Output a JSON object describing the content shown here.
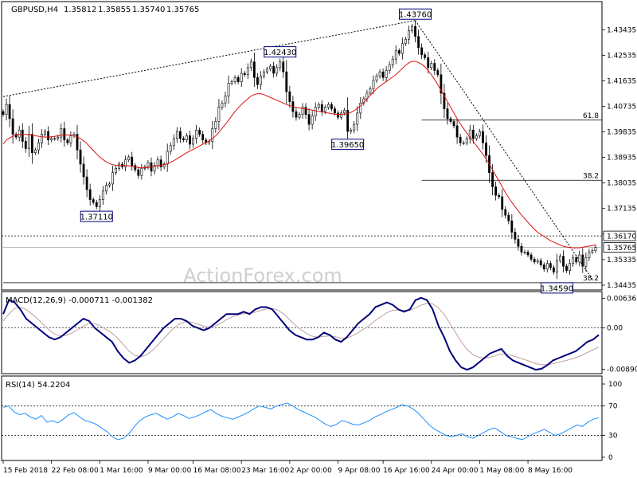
{
  "chart_data": {
    "type": "candlestick",
    "header": {
      "symbol": "GBPUSD,H4",
      "open": "1.35812",
      "high": "1.35855",
      "low": "1.35740",
      "close": "1.35765"
    },
    "watermark": "ActionForex.com",
    "price_axis": {
      "ylim": [
        1.3432,
        1.4437
      ],
      "ticks": [
        "1.43435",
        "1.42535",
        "1.41635",
        "1.40735",
        "1.39835",
        "1.38935",
        "1.38035",
        "1.37135",
        "1.36235",
        "1.35335",
        "1.34435"
      ],
      "current_price": "1.35765",
      "current_price_value": 1.35765,
      "level_line": "1.36170",
      "level_line_value": 1.3617
    },
    "annotations": [
      {
        "label": "1.43760",
        "x": 128,
        "y": 1.4376
      },
      {
        "label": "1.42430",
        "x": 86,
        "y": 1.4243
      },
      {
        "label": "1.39650",
        "x": 107,
        "y": 1.3965
      },
      {
        "label": "1.37110",
        "x": 29,
        "y": 1.3711
      },
      {
        "label": "1.34590",
        "x": 172,
        "y": 1.3459
      }
    ],
    "fibonacci": [
      {
        "label": "61.8",
        "y": 1.4025,
        "x_from": 130,
        "x_to": 186
      },
      {
        "label": "38.2",
        "y": 1.3813,
        "x_from": 130,
        "x_to": 186
      },
      {
        "label": "38.2",
        "y": 1.3452,
        "x_from": 0,
        "x_to": 186
      }
    ],
    "trendlines": [
      {
        "points": [
          [
            0,
            1.4108
          ],
          [
            128,
            1.4376
          ]
        ]
      },
      {
        "points": [
          [
            128,
            1.4376
          ],
          [
            183,
            1.3464
          ]
        ]
      }
    ],
    "close_series": [
      1.4045,
      1.408,
      1.403,
      1.3975,
      1.3965,
      1.399,
      1.395,
      1.3925,
      1.3975,
      1.391,
      1.392,
      1.3945,
      1.3975,
      1.3985,
      1.3955,
      1.396,
      1.396,
      1.3965,
      1.3995,
      1.3955,
      1.3945,
      1.397,
      1.3975,
      1.392,
      1.387,
      1.3825,
      1.378,
      1.3745,
      1.3735,
      1.372,
      1.3745,
      1.3775,
      1.3795,
      1.38,
      1.384,
      1.3855,
      1.387,
      1.386,
      1.3885,
      1.3895,
      1.3865,
      1.385,
      1.383,
      1.3855,
      1.386,
      1.3875,
      1.3845,
      1.3865,
      1.3885,
      1.386,
      1.387,
      1.3915,
      1.3935,
      1.396,
      1.3985,
      1.396,
      1.3955,
      1.397,
      1.394,
      1.396,
      1.399,
      1.3975,
      1.3955,
      1.3945,
      1.395,
      1.3995,
      1.402,
      1.407,
      1.4085,
      1.411,
      1.4155,
      1.416,
      1.4175,
      1.416,
      1.419,
      1.4185,
      1.421,
      1.423,
      1.4175,
      1.415,
      1.418,
      1.4195,
      1.4205,
      1.4215,
      1.419,
      1.421,
      1.423,
      1.4195,
      1.4125,
      1.409,
      1.4055,
      1.4035,
      1.4045,
      1.407,
      1.4045,
      1.401,
      1.404,
      1.407,
      1.408,
      1.4055,
      1.407,
      1.408,
      1.4065,
      1.405,
      1.4035,
      1.405,
      1.406,
      1.3985,
      1.399,
      1.401,
      1.405,
      1.4085,
      1.41,
      1.412,
      1.4135,
      1.4165,
      1.418,
      1.4195,
      1.4175,
      1.42,
      1.422,
      1.424,
      1.427,
      1.426,
      1.4295,
      1.431,
      1.434,
      1.4355,
      1.432,
      1.428,
      1.4255,
      1.4245,
      1.421,
      1.4225,
      1.42,
      1.4185,
      1.412,
      1.4065,
      1.403,
      1.402,
      1.4005,
      1.3965,
      1.3945,
      1.3945,
      1.396,
      1.399,
      1.396,
      1.397,
      1.3985,
      1.3945,
      1.39,
      1.384,
      1.379,
      1.376,
      1.3755,
      1.371,
      1.369,
      1.367,
      1.363,
      1.3605,
      1.358,
      1.356,
      1.356,
      1.355,
      1.3535,
      1.3525,
      1.353,
      1.3515,
      1.35,
      1.352,
      1.3505,
      1.349,
      1.353,
      1.3545,
      1.351,
      1.3495,
      1.352,
      1.354,
      1.3525,
      1.355,
      1.351,
      1.354,
      1.356,
      1.3565,
      1.35765
    ],
    "ma_series": [
      1.394,
      1.3955,
      1.3962,
      1.3968,
      1.3972,
      1.3974,
      1.3975,
      1.3975,
      1.3974,
      1.3972,
      1.397,
      1.3968,
      1.3966,
      1.3965,
      1.3965,
      1.3966,
      1.3968,
      1.397,
      1.3972,
      1.3973,
      1.3973,
      1.3972,
      1.397,
      1.3966,
      1.396,
      1.3952,
      1.3942,
      1.393,
      1.3918,
      1.3906,
      1.3895,
      1.3886,
      1.3878,
      1.3872,
      1.3868,
      1.3866,
      1.3865,
      1.3865,
      1.3865,
      1.3864,
      1.3862,
      1.386,
      1.3858,
      1.3857,
      1.3857,
      1.3858,
      1.386,
      1.3862,
      1.3864,
      1.3866,
      1.3868,
      1.3871,
      1.3876,
      1.3882,
      1.3889,
      1.3896,
      1.3903,
      1.391,
      1.3916,
      1.3922,
      1.3928,
      1.3934,
      1.394,
      1.3946,
      1.3952,
      1.396,
      1.397,
      1.3982,
      1.3996,
      1.401,
      1.4025,
      1.404,
      1.4055,
      1.4068,
      1.408,
      1.409,
      1.41,
      1.411,
      1.4115,
      1.4118,
      1.4118,
      1.4115,
      1.411,
      1.4105,
      1.41,
      1.4095,
      1.409,
      1.4085,
      1.408,
      1.4076,
      1.4073,
      1.407,
      1.4068,
      1.4066,
      1.4064,
      1.4062,
      1.406,
      1.4058,
      1.4056,
      1.4054,
      1.4052,
      1.405,
      1.4048,
      1.4046,
      1.4045,
      1.4045,
      1.4046,
      1.4048,
      1.4052,
      1.4058,
      1.4066,
      1.4076,
      1.4088,
      1.41,
      1.4112,
      1.4124,
      1.4135,
      1.4145,
      1.4153,
      1.4161,
      1.4169,
      1.4177,
      1.4186,
      1.4196,
      1.4207,
      1.4218,
      1.4227,
      1.4232,
      1.4232,
      1.4228,
      1.4222,
      1.4212,
      1.42,
      1.4185,
      1.4168,
      1.415,
      1.413,
      1.411,
      1.409,
      1.407,
      1.405,
      1.403,
      1.4012,
      1.3995,
      1.398,
      1.3965,
      1.395,
      1.3935,
      1.392,
      1.3905,
      1.3888,
      1.387,
      1.385,
      1.383,
      1.381,
      1.379,
      1.377,
      1.3752,
      1.3735,
      1.372,
      1.3705,
      1.369,
      1.3678,
      1.3665,
      1.3652,
      1.364,
      1.363,
      1.3622,
      1.3615,
      1.3608,
      1.36,
      1.3595,
      1.359,
      1.3585,
      1.358,
      1.3578,
      1.3576,
      1.3575,
      1.3575,
      1.3575,
      1.3577,
      1.3579,
      1.3581,
      1.3583,
      1.3586
    ],
    "macd": {
      "label": "MACD(12,26,9) -0.000711 -0.001382",
      "ylim": [
        -0.0095,
        0.0075
      ],
      "ticks": [
        "0.006368",
        "0.00",
        "-0.008903"
      ],
      "tick_values": [
        0.006368,
        0.0,
        -0.008903
      ],
      "main": [
        0.003,
        0.006,
        0.0055,
        0.004,
        0.002,
        0.001,
        0.0,
        -0.001,
        -0.002,
        -0.0025,
        -0.002,
        -0.001,
        0.0,
        0.001,
        0.002,
        0.0015,
        0.0,
        -0.001,
        -0.002,
        -0.003,
        -0.005,
        -0.0065,
        -0.0075,
        -0.007,
        -0.006,
        -0.0045,
        -0.003,
        -0.0015,
        0.0,
        0.001,
        0.002,
        0.002,
        0.0015,
        0.0005,
        0.0,
        -0.0005,
        0.0,
        0.001,
        0.002,
        0.003,
        0.003,
        0.003,
        0.0035,
        0.003,
        0.004,
        0.0045,
        0.0045,
        0.004,
        0.0025,
        0.001,
        -0.0005,
        -0.0015,
        -0.002,
        -0.0025,
        -0.0025,
        -0.002,
        -0.001,
        -0.0015,
        -0.0025,
        -0.003,
        -0.002,
        -0.0005,
        0.001,
        0.002,
        0.003,
        0.0045,
        0.005,
        0.0055,
        0.005,
        0.004,
        0.0035,
        0.004,
        0.006,
        0.0065,
        0.006,
        0.004,
        0.0005,
        -0.002,
        -0.005,
        -0.007,
        -0.0085,
        -0.009,
        -0.0085,
        -0.0075,
        -0.0065,
        -0.0055,
        -0.005,
        -0.0045,
        -0.006,
        -0.007,
        -0.0075,
        -0.008,
        -0.0085,
        -0.009,
        -0.0088,
        -0.008,
        -0.007,
        -0.0065,
        -0.006,
        -0.0055,
        -0.005,
        -0.004,
        -0.003,
        -0.0025,
        -0.0015
      ],
      "signal": [
        0.0015,
        0.003,
        0.0042,
        0.0045,
        0.004,
        0.003,
        0.002,
        0.0008,
        -0.0004,
        -0.0013,
        -0.0017,
        -0.0016,
        -0.0011,
        -0.0004,
        0.0004,
        0.001,
        0.0009,
        0.0004,
        -0.0003,
        -0.0011,
        -0.0022,
        -0.0036,
        -0.005,
        -0.0059,
        -0.0062,
        -0.0058,
        -0.0049,
        -0.0037,
        -0.0023,
        -0.001,
        0.0002,
        0.001,
        0.0014,
        0.0012,
        0.0008,
        0.0004,
        0.0002,
        0.0004,
        0.001,
        0.0018,
        0.0024,
        0.0028,
        0.0031,
        0.0032,
        0.0034,
        0.0038,
        0.0041,
        0.0042,
        0.0038,
        0.003,
        0.0018,
        0.0006,
        -0.0004,
        -0.0012,
        -0.0018,
        -0.002,
        -0.0018,
        -0.0017,
        -0.0019,
        -0.0022,
        -0.0022,
        -0.0017,
        -0.001,
        -0.0002,
        0.0006,
        0.0016,
        0.0025,
        0.0033,
        0.0038,
        0.0039,
        0.0038,
        0.0038,
        0.0043,
        0.0049,
        0.0053,
        0.0052,
        0.0043,
        0.0029,
        0.001,
        -0.001,
        -0.003,
        -0.0046,
        -0.0057,
        -0.0063,
        -0.0065,
        -0.0063,
        -0.006,
        -0.0056,
        -0.0057,
        -0.006,
        -0.0064,
        -0.0068,
        -0.0072,
        -0.0077,
        -0.0079,
        -0.0079,
        -0.0077,
        -0.0074,
        -0.0071,
        -0.0068,
        -0.0064,
        -0.0059,
        -0.0053,
        -0.0047,
        -0.0041
      ]
    },
    "rsi": {
      "label": "RSI(14) 54.2204",
      "ylim": [
        0,
        100
      ],
      "ticks": [
        "100",
        "70",
        "30",
        "0"
      ],
      "tick_values": [
        100,
        70,
        30,
        0
      ],
      "values": [
        68,
        70,
        62,
        58,
        60,
        55,
        52,
        57,
        48,
        50,
        47,
        52,
        58,
        61,
        55,
        50,
        48,
        45,
        40,
        35,
        28,
        24,
        26,
        32,
        42,
        50,
        55,
        58,
        60,
        56,
        52,
        55,
        60,
        57,
        53,
        55,
        58,
        62,
        65,
        60,
        56,
        54,
        52,
        55,
        58,
        62,
        67,
        70,
        68,
        66,
        70,
        72,
        74,
        70,
        65,
        62,
        58,
        55,
        50,
        45,
        42,
        45,
        50,
        48,
        45,
        44,
        47,
        50,
        55,
        58,
        62,
        65,
        68,
        72,
        70,
        66,
        60,
        52,
        44,
        38,
        34,
        30,
        28,
        30,
        32,
        28,
        26,
        30,
        34,
        38,
        40,
        35,
        30,
        28,
        26,
        24,
        28,
        32,
        35,
        38,
        34,
        30,
        32,
        36,
        40,
        44,
        42,
        48,
        52,
        54
      ]
    },
    "x_axis": {
      "count": 186,
      "tick_labels": [
        {
          "label": "15 Feb 2018",
          "x": 0
        },
        {
          "label": "22 Feb 08:00",
          "x": 15
        },
        {
          "label": "1 Mar 16:00",
          "x": 30
        },
        {
          "label": "9 Mar 00:00",
          "x": 45
        },
        {
          "label": "16 Mar 08:00",
          "x": 59
        },
        {
          "label": "23 Mar 16:00",
          "x": 74
        },
        {
          "label": "2 Apr 00:00",
          "x": 89
        },
        {
          "label": "9 Apr 08:00",
          "x": 104
        },
        {
          "label": "16 Apr 16:00",
          "x": 118
        },
        {
          "label": "24 Apr 00:00",
          "x": 133
        },
        {
          "label": "1 May 08:00",
          "x": 148
        },
        {
          "label": "8 May 16:00",
          "x": 163
        }
      ]
    },
    "colors": {
      "candle": "#000000",
      "ma": "#dd1111",
      "macd_main": "#00007a",
      "macd_signal": "#c0a0a0",
      "rsi": "#1e90ff",
      "grid": "#000000",
      "label_box": "#00007a"
    }
  }
}
